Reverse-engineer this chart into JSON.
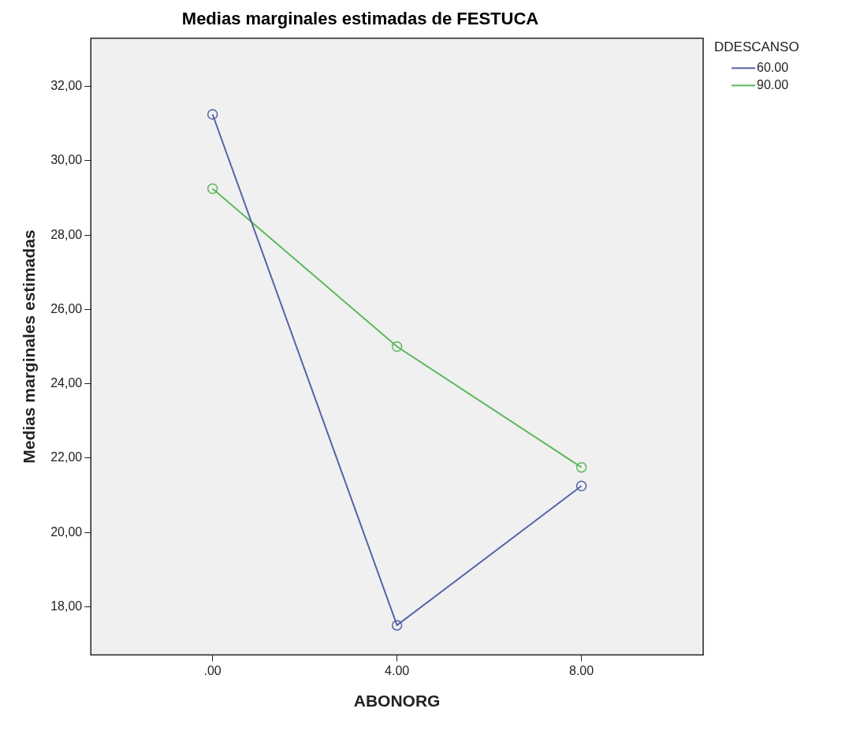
{
  "chart_data": {
    "type": "line",
    "title": "Medias marginales estimadas de FESTUCA",
    "xlabel": "ABONORG",
    "ylabel": "Medias marginales estimadas",
    "legend_title": "DDESCANSO",
    "categories": [
      ".00",
      "4.00",
      "8.00"
    ],
    "series": [
      {
        "name": "60.00",
        "color": "#5563a6",
        "values": [
          31.25,
          17.5,
          21.25
        ]
      },
      {
        "name": "90.00",
        "color": "#5cb85c",
        "values": [
          29.25,
          25,
          21.75
        ]
      }
    ],
    "ylim": [
      16.7,
      33.3
    ],
    "yticks": [
      {
        "value": 18,
        "label": "18,00"
      },
      {
        "value": 20,
        "label": "20,00"
      },
      {
        "value": 22,
        "label": "22,00"
      },
      {
        "value": 24,
        "label": "24,00"
      },
      {
        "value": 26,
        "label": "26,00"
      },
      {
        "value": 28,
        "label": "28,00"
      },
      {
        "value": 30,
        "label": "30,00"
      },
      {
        "value": 32,
        "label": "32,00"
      }
    ],
    "grid": false,
    "legend": "top right",
    "marker": "circle",
    "line_style": "solid"
  }
}
